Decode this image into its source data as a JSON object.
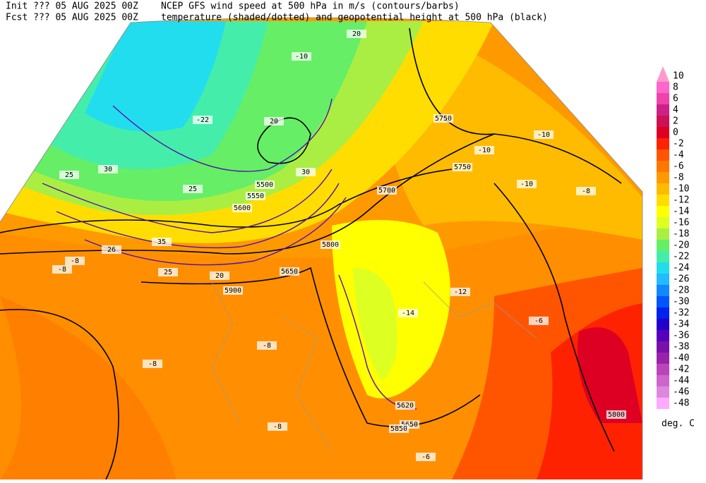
{
  "header": {
    "init": "Init  ??? 05 AUG 2025 00Z",
    "fcst": "Fcst ??? 05 AUG 2025 00Z",
    "title1": "NCEP GFS wind speed at 500 hPa in m/s (contours/barbs)",
    "title2": "temperature (shaded/dotted) and geopotential height at 500 hPa (black)"
  },
  "colorbar": {
    "labels": [
      10,
      8,
      6,
      4,
      2,
      0,
      -2,
      -4,
      -6,
      -8,
      -10,
      -12,
      -14,
      -16,
      -18,
      -20,
      -22,
      -24,
      -26,
      -28,
      -30,
      -32,
      -34,
      -36,
      -38,
      -40,
      -42,
      -44,
      -46,
      -48
    ],
    "colors": [
      "#ff99cc",
      "#ff66cc",
      "#ee44aa",
      "#cc2288",
      "#cc1155",
      "#dd0022",
      "#ff2200",
      "#ff5500",
      "#ff7700",
      "#ff9900",
      "#ffbb00",
      "#ffdd00",
      "#ffff00",
      "#ddff22",
      "#aaee44",
      "#66ee66",
      "#44eeaa",
      "#22ddee",
      "#22bbff",
      "#1188ff",
      "#0055ff",
      "#0022ee",
      "#2200cc",
      "#5500bb",
      "#7711aa",
      "#9922aa",
      "#bb44bb",
      "#cc66cc",
      "#dd88dd",
      "#ffaaff"
    ],
    "unit": "deg. C"
  },
  "contour_labels": [
    "5750",
    "5750",
    "5700",
    "5600",
    "5550",
    "5500",
    "5650",
    "5800",
    "5900",
    "5650",
    "5850",
    "5620",
    "5800",
    "20",
    "20",
    "25",
    "30",
    "25",
    "35",
    "25",
    "20",
    "26",
    "30",
    "-10",
    "-10",
    "-10",
    "-10",
    "-12",
    "-14",
    "-8",
    "-8",
    "-8",
    "-8",
    "-8",
    "-6",
    "-6",
    "-8",
    "-22"
  ]
}
